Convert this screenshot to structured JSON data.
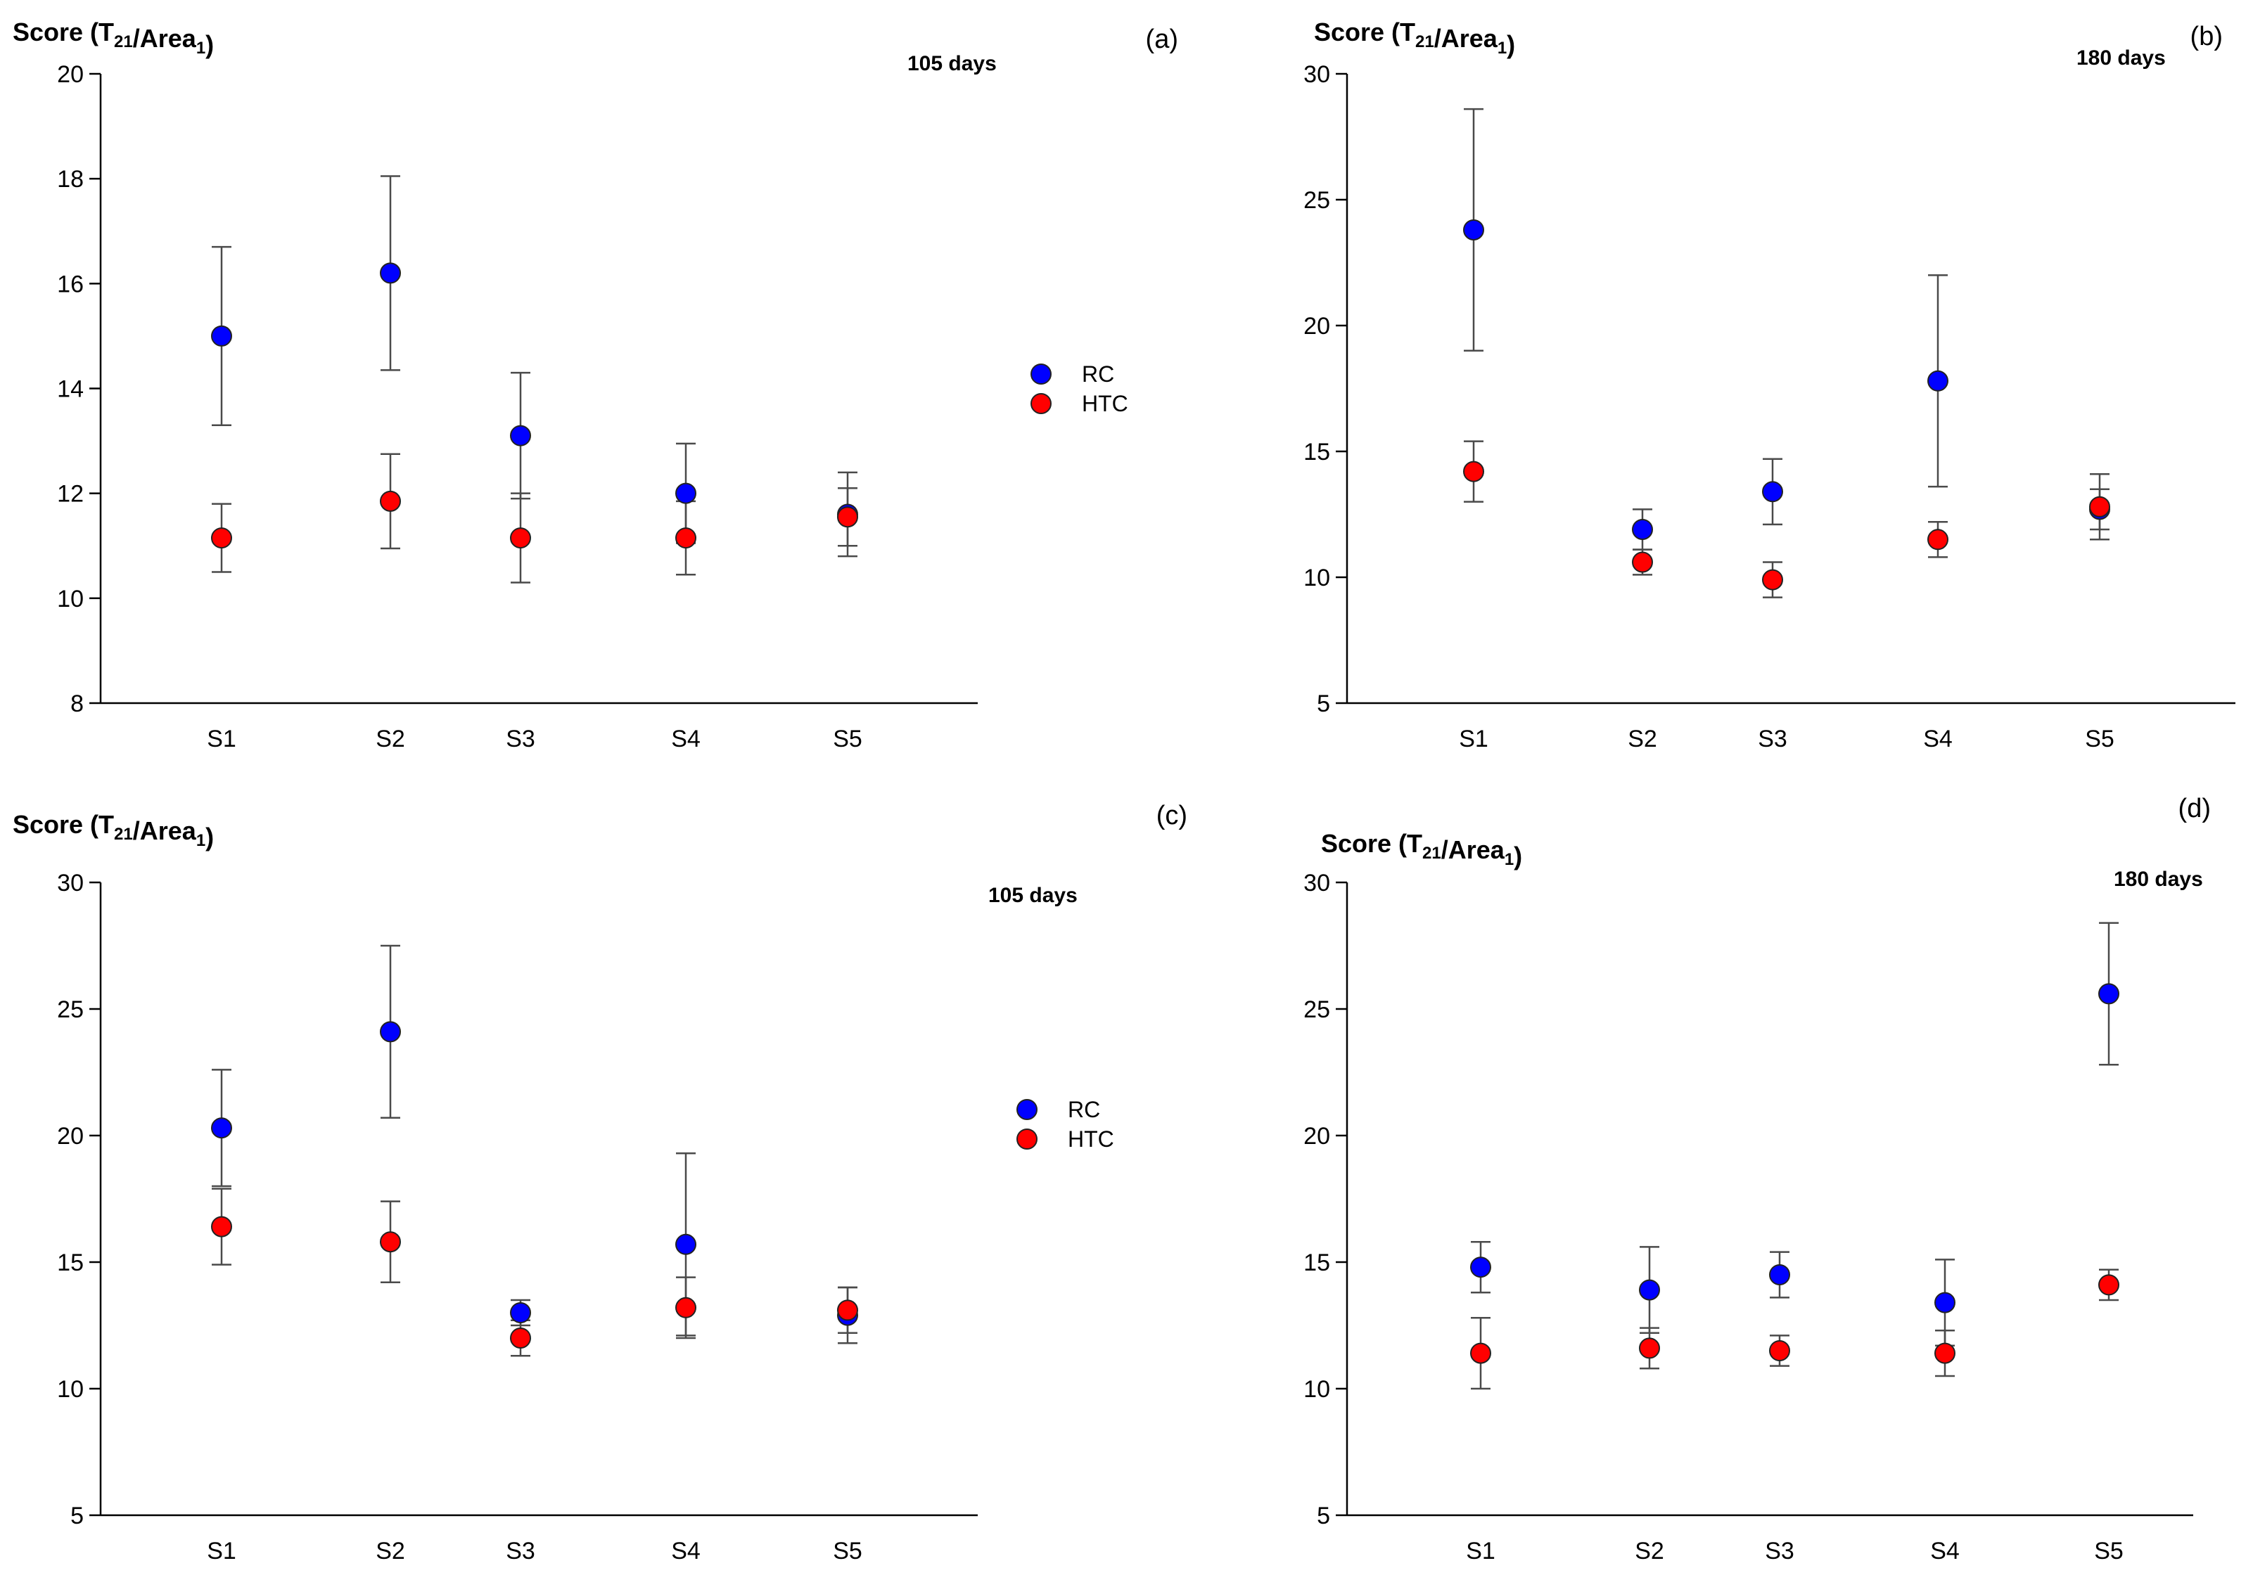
{
  "colors": {
    "RC": "#0000ff",
    "HTC": "#ff0000",
    "axis": "#000000",
    "errorbar": "#4a4a4a"
  },
  "chart_data": [
    {
      "type": "scatter",
      "panel": "(a)",
      "title_prefix": "Score (T",
      "title_sub1": "21",
      "title_mid": "/Area",
      "title_sub2": "1",
      "title_suffix": ")",
      "annotation": "105 days",
      "categories": [
        "S1",
        "S2",
        "S3",
        "S4",
        "S5"
      ],
      "ylim": [
        8,
        20
      ],
      "yticks": [
        "8",
        "10",
        "12",
        "14",
        "16",
        "18",
        "20"
      ],
      "legend": {
        "show": true,
        "position": "right",
        "entries": [
          "RC",
          "HTC"
        ]
      },
      "series": [
        {
          "name": "RC",
          "values": [
            15.0,
            16.2,
            13.1,
            12.0,
            11.6
          ],
          "err": [
            1.7,
            1.85,
            1.2,
            0.95,
            0.8
          ]
        },
        {
          "name": "HTC",
          "values": [
            11.15,
            11.85,
            11.15,
            11.15,
            11.55
          ],
          "err": [
            0.65,
            0.9,
            0.85,
            0.7,
            0.55
          ]
        }
      ]
    },
    {
      "type": "scatter",
      "panel": "(b)",
      "title_prefix": "Score (T",
      "title_sub1": "21",
      "title_mid": "/Area",
      "title_sub2": "1",
      "title_suffix": ")",
      "annotation": "180 days",
      "categories": [
        "S1",
        "S2",
        "S3",
        "S4",
        "S5"
      ],
      "ylim": [
        5,
        30
      ],
      "yticks": [
        "5",
        "10",
        "15",
        "20",
        "25",
        "30"
      ],
      "legend": {
        "show": false,
        "entries": []
      },
      "series": [
        {
          "name": "RC",
          "values": [
            23.8,
            11.9,
            13.4,
            17.8,
            12.7
          ],
          "err": [
            4.8,
            0.8,
            1.3,
            4.2,
            0.8
          ]
        },
        {
          "name": "HTC",
          "values": [
            14.2,
            10.6,
            9.9,
            11.5,
            12.8
          ],
          "err": [
            1.2,
            0.5,
            0.7,
            0.7,
            1.3
          ]
        }
      ]
    },
    {
      "type": "scatter",
      "panel": "(c)",
      "title_prefix": "Score (T",
      "title_sub1": "21",
      "title_mid": "/Area",
      "title_sub2": "1",
      "title_suffix": ")",
      "annotation": "105 days",
      "categories": [
        "S1",
        "S2",
        "S3",
        "S4",
        "S5"
      ],
      "ylim": [
        5,
        30
      ],
      "yticks": [
        "5",
        "10",
        "15",
        "20",
        "25",
        "30"
      ],
      "legend": {
        "show": true,
        "position": "right",
        "entries": [
          "RC",
          "HTC"
        ]
      },
      "series": [
        {
          "name": "RC",
          "values": [
            20.3,
            24.1,
            13.0,
            15.7,
            12.9
          ],
          "err": [
            2.3,
            3.4,
            0.5,
            3.6,
            1.1
          ]
        },
        {
          "name": "HTC",
          "values": [
            16.4,
            15.8,
            12.0,
            13.2,
            13.1
          ],
          "err": [
            1.5,
            1.6,
            0.7,
            1.2,
            0.9
          ]
        }
      ]
    },
    {
      "type": "scatter",
      "panel": "(d)",
      "title_prefix": "Score (T",
      "title_sub1": "21",
      "title_mid": "/Area",
      "title_sub2": "1",
      "title_suffix": ")",
      "annotation": "180 days",
      "categories": [
        "S1",
        "S2",
        "S3",
        "S4",
        "S5"
      ],
      "ylim": [
        5,
        30
      ],
      "yticks": [
        "5",
        "10",
        "15",
        "20",
        "25",
        "30"
      ],
      "legend": {
        "show": false,
        "entries": []
      },
      "series": [
        {
          "name": "RC",
          "values": [
            14.8,
            13.9,
            14.5,
            13.4,
            25.6
          ],
          "err": [
            1.0,
            1.7,
            0.9,
            1.7,
            2.8
          ]
        },
        {
          "name": "HTC",
          "values": [
            11.4,
            11.6,
            11.5,
            11.4,
            14.1
          ],
          "err": [
            1.4,
            0.8,
            0.6,
            0.9,
            0.6
          ]
        }
      ]
    }
  ]
}
